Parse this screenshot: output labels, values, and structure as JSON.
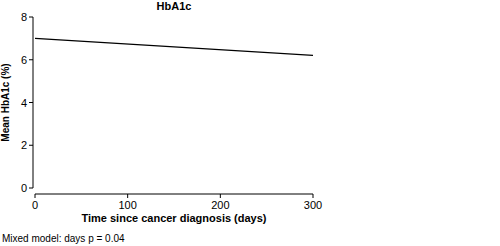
{
  "chart_data": {
    "type": "line",
    "title": "HbA1c",
    "x_label": "Time since cancer diagnosis (days)",
    "y_label": "Mean HbA1c (%)",
    "annotation": "Mixed model: days p = 0.04",
    "x": [
      0,
      300
    ],
    "values": [
      7.0,
      6.2
    ],
    "color": "#000000",
    "xlim": [
      0,
      300
    ],
    "xticks": [
      0,
      100,
      200,
      300
    ],
    "ylim": [
      0,
      8
    ],
    "yticks": [
      0,
      2,
      4,
      6,
      8
    ]
  }
}
